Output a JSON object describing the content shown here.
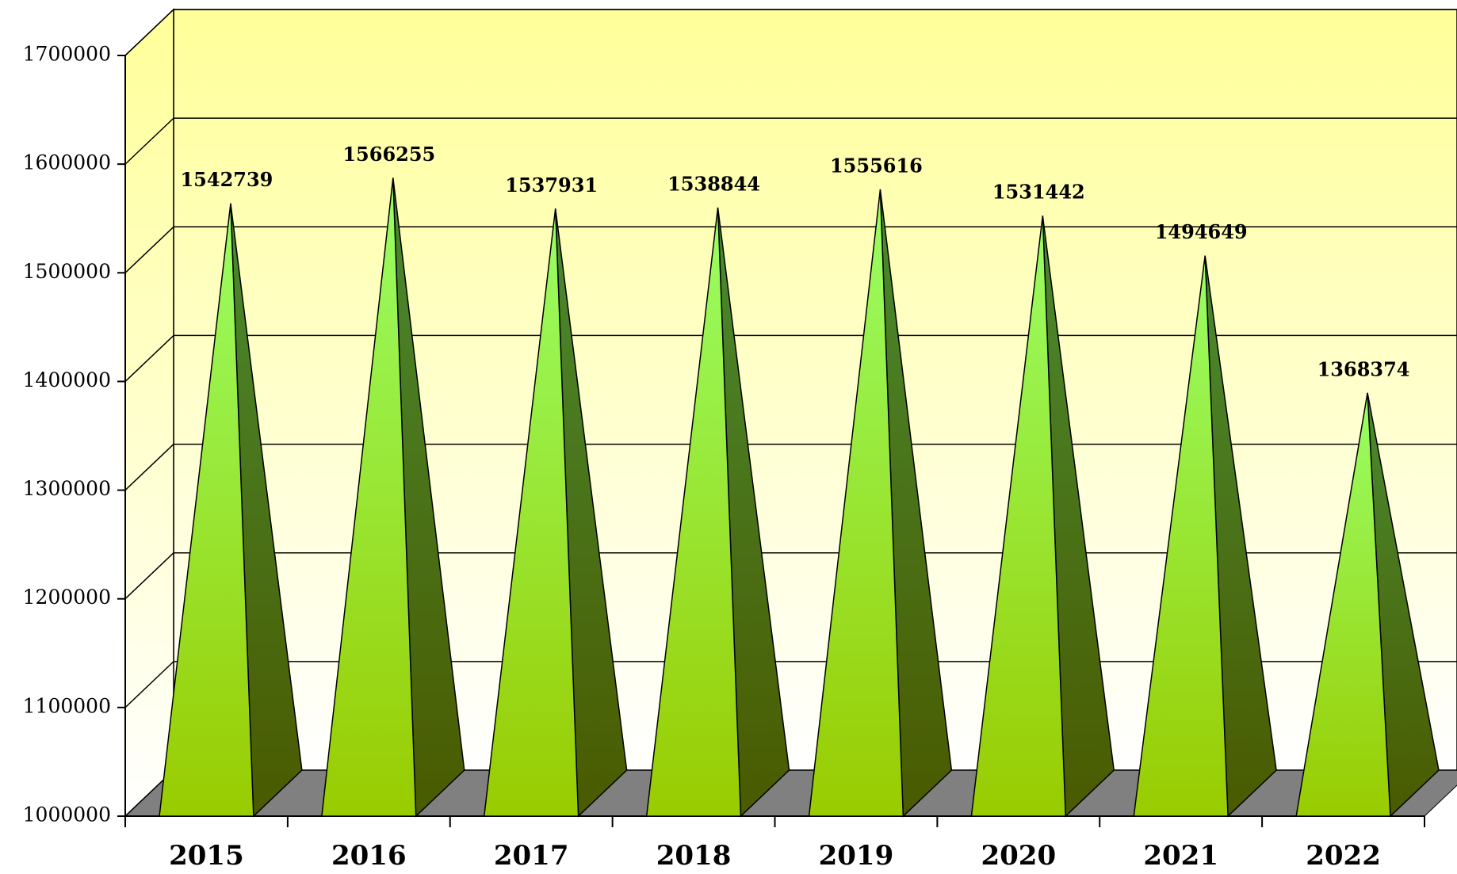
{
  "chart_data": {
    "type": "bar",
    "categories": [
      "2015",
      "2016",
      "2017",
      "2018",
      "2019",
      "2020",
      "2021",
      "2022"
    ],
    "values": [
      1542739,
      1566255,
      1537931,
      1538844,
      1555616,
      1531442,
      1494649,
      1368374
    ],
    "color": "#99cc00",
    "ylim": [
      1000000,
      1700000
    ],
    "yticks": [
      1000000,
      1100000,
      1200000,
      1300000,
      1400000,
      1500000,
      1600000,
      1700000
    ],
    "grid": true
  }
}
